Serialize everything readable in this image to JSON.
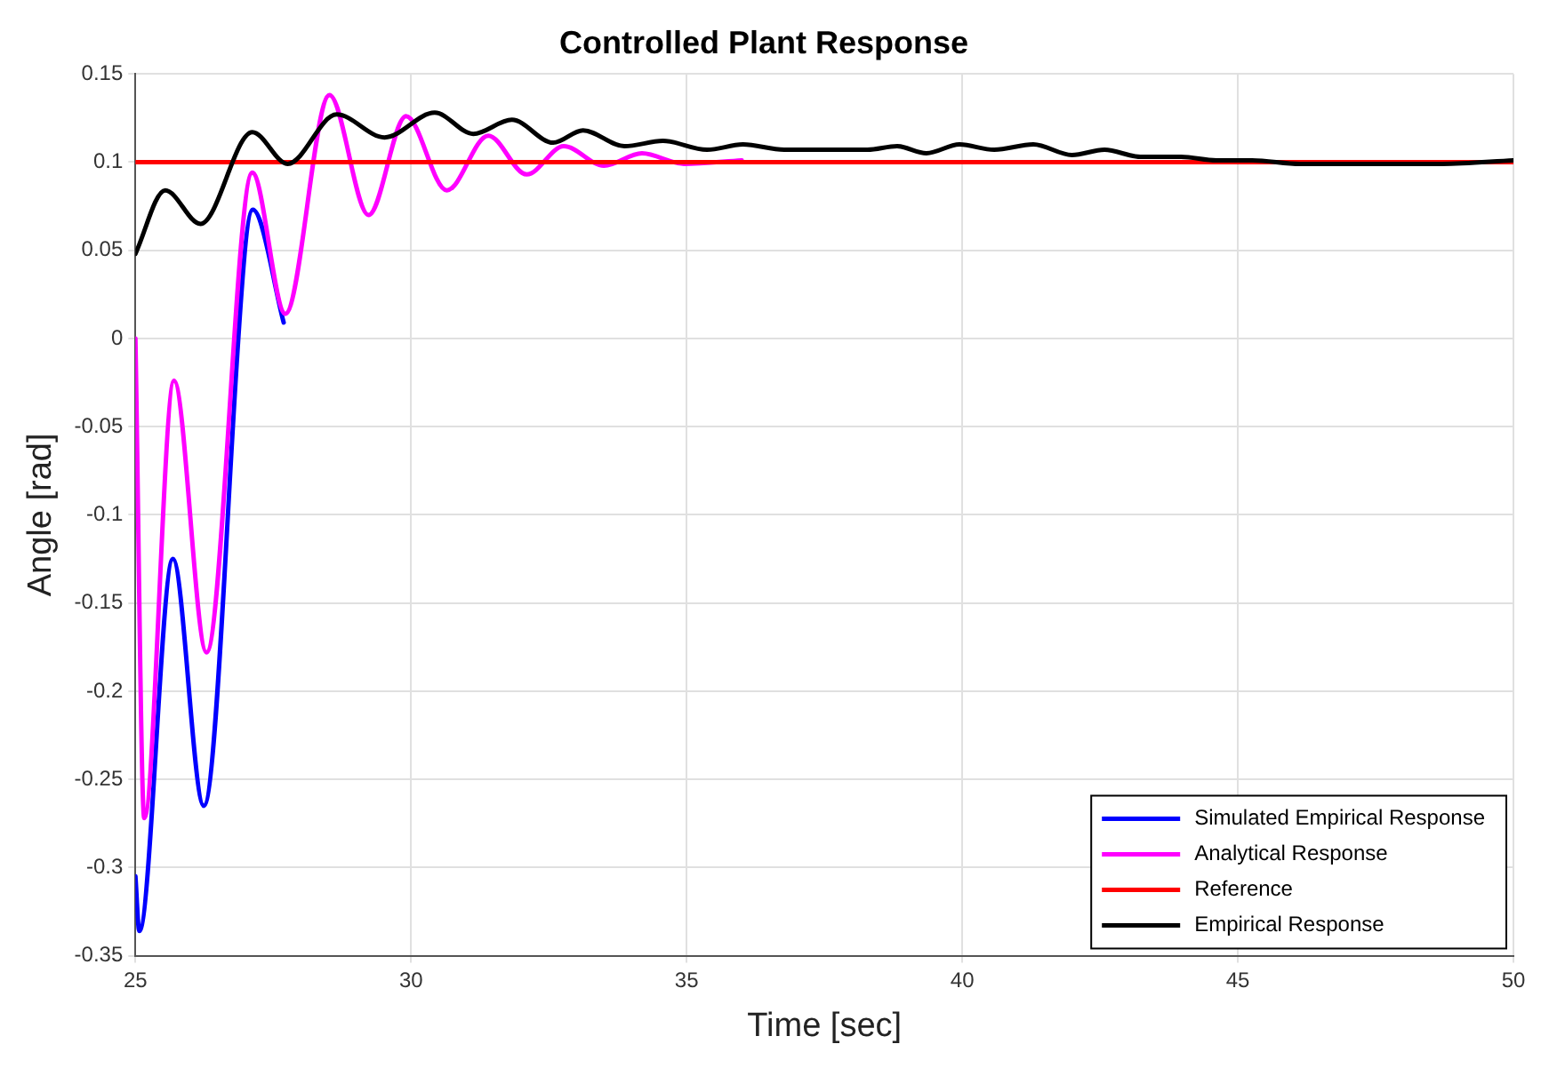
{
  "chart_data": {
    "type": "line",
    "title": "Controlled Plant Response",
    "xlabel": "Time [sec]",
    "ylabel": "Angle [rad]",
    "xlim": [
      25,
      50
    ],
    "xticks": [
      25,
      30,
      35,
      40,
      45,
      50
    ],
    "ylim": [
      -0.35,
      0.15
    ],
    "yticks": [
      -0.35,
      -0.3,
      -0.25,
      -0.2,
      -0.15,
      -0.1,
      -0.05,
      0,
      0.05,
      0.1,
      0.15
    ],
    "grid": true,
    "legend": "bottom right",
    "marker": "none",
    "line_style": "solid",
    "series": [
      {
        "name": "Simulated Empirical Response",
        "color": "#0000ff",
        "x": [
          25,
          25.07,
          25.68,
          26.24,
          27.13,
          27.69
        ],
        "values": [
          -0.305,
          -0.336,
          -0.125,
          -0.265,
          0.073,
          0.009
        ]
      },
      {
        "name": "Analytical Response",
        "color": "#ff00ff",
        "x": [
          25,
          25.16,
          25.7,
          26.29,
          27.12,
          27.72,
          28.52,
          29.23,
          29.91,
          30.65,
          31.4,
          32.1,
          32.77,
          33.5,
          34.19,
          34.95,
          36
        ],
        "values": [
          0,
          -0.272,
          -0.024,
          -0.178,
          0.094,
          0.014,
          0.138,
          0.07,
          0.126,
          0.084,
          0.115,
          0.093,
          0.109,
          0.098,
          0.105,
          0.099,
          0.101
        ]
      },
      {
        "name": "Reference",
        "color": "#ff0000",
        "x": [
          25,
          50
        ],
        "values": [
          0.1,
          0.1
        ]
      },
      {
        "name": "Empirical Response",
        "color": "#000000",
        "x": [
          25,
          25.54,
          26.18,
          27.12,
          27.76,
          28.65,
          29.52,
          30.43,
          31.13,
          31.83,
          32.58,
          33.12,
          33.87,
          34.57,
          35.37,
          36.02,
          36.77,
          38.28,
          38.82,
          39.35,
          39.95,
          40.58,
          41.29,
          41.99,
          42.58,
          43.23,
          43.97,
          44.61,
          45.26,
          46.13,
          47.42,
          48.71,
          50
        ],
        "values": [
          0.048,
          0.084,
          0.065,
          0.117,
          0.099,
          0.127,
          0.114,
          0.128,
          0.116,
          0.124,
          0.111,
          0.118,
          0.109,
          0.112,
          0.107,
          0.11,
          0.107,
          0.107,
          0.109,
          0.105,
          0.11,
          0.107,
          0.11,
          0.104,
          0.107,
          0.103,
          0.103,
          0.101,
          0.101,
          0.099,
          0.099,
          0.099,
          0.101
        ]
      }
    ]
  }
}
